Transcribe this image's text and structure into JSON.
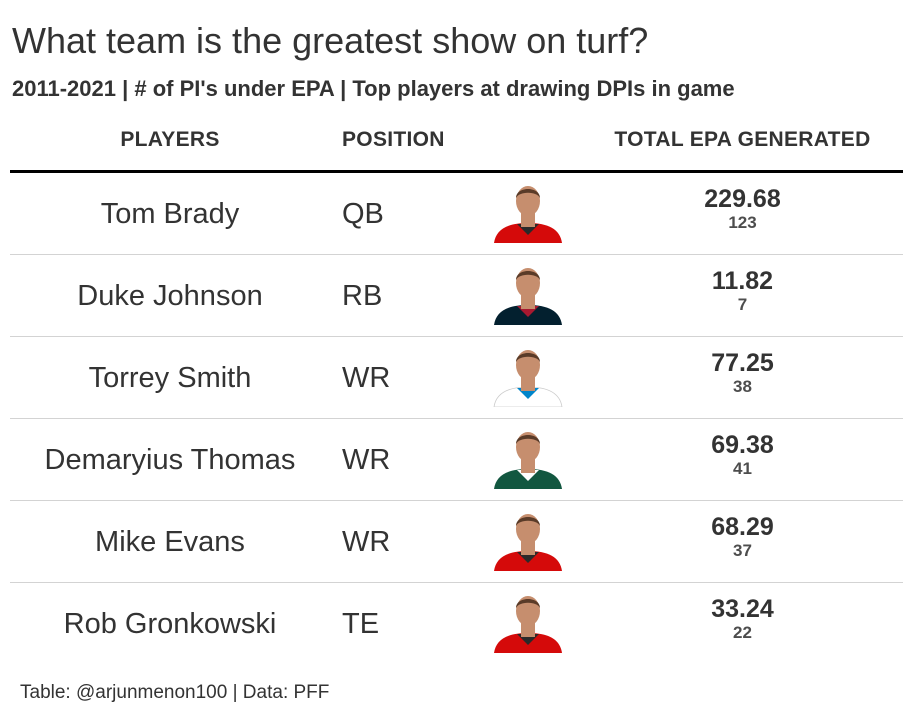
{
  "title": "What team is the greatest show on turf?",
  "subtitle": "2011-2021 | # of PI's under EPA | Top players at drawing DPIs in game",
  "source": "Table: @arjunmenon100 | Data: PFF",
  "colors": {
    "text": "#333333",
    "header_rule": "#000000",
    "row_divider": "#d3d3d3"
  },
  "chart_data": {
    "type": "table",
    "columns": [
      "PLAYERS",
      "POSITION",
      "",
      "TOTAL EPA GENERATED"
    ],
    "rows": [
      {
        "player": "Tom Brady",
        "position": "QB",
        "headshot": "headshot-buccaneers-jersey",
        "jersey": "#d50a0a",
        "collar": "#2a2a2a",
        "epa": "229.68",
        "count": "123"
      },
      {
        "player": "Duke Johnson",
        "position": "RB",
        "headshot": "headshot-texans-jersey",
        "jersey": "#03202f",
        "collar": "#a71930",
        "epa": "11.82",
        "count": "7"
      },
      {
        "player": "Torrey Smith",
        "position": "WR",
        "headshot": "headshot-panthers-jersey",
        "jersey": "#ffffff",
        "collar": "#0085ca",
        "epa": "77.25",
        "count": "38"
      },
      {
        "player": "Demaryius Thomas",
        "position": "WR",
        "headshot": "headshot-jets-jersey",
        "jersey": "#125740",
        "collar": "#ffffff",
        "epa": "69.38",
        "count": "41"
      },
      {
        "player": "Mike Evans",
        "position": "WR",
        "headshot": "headshot-buccaneers-jersey",
        "jersey": "#d50a0a",
        "collar": "#2a2a2a",
        "epa": "68.29",
        "count": "37"
      },
      {
        "player": "Rob Gronkowski",
        "position": "TE",
        "headshot": "headshot-buccaneers-jersey",
        "jersey": "#d50a0a",
        "collar": "#2a2a2a",
        "epa": "33.24",
        "count": "22"
      }
    ]
  }
}
